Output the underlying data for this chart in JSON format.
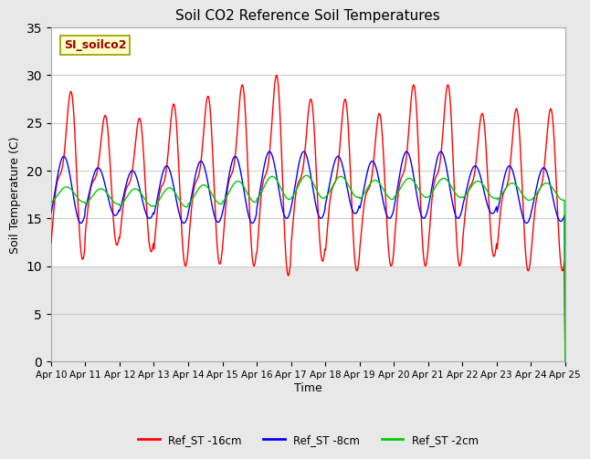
{
  "title": "Soil CO2 Reference Soil Temperatures",
  "xlabel": "Time",
  "ylabel": "Soil Temperature (C)",
  "ylim": [
    0,
    35
  ],
  "yticks": [
    0,
    5,
    10,
    15,
    20,
    25,
    30,
    35
  ],
  "label_box_text": "SI_soilco2",
  "x_tick_labels": [
    "Apr 10",
    "Apr 11",
    "Apr 12",
    "Apr 13",
    "Apr 14",
    "Apr 15",
    "Apr 16",
    "Apr 17",
    "Apr 18",
    "Apr 19",
    "Apr 20",
    "Apr 21",
    "Apr 22",
    "Apr 23",
    "Apr 24",
    "Apr 25"
  ],
  "fig_bg_color": "#e8e8e8",
  "plot_bg_color": "#ffffff",
  "plot_bg_low_color": "#e8e8e8",
  "active_band_color": "#e8e8e8",
  "line_colors": [
    "#ff0000",
    "#0000ff",
    "#00cc00"
  ],
  "line_labels": [
    "Ref_ST -16cm",
    "Ref_ST -8cm",
    "Ref_ST -2cm"
  ],
  "legend_box_color": "#ffffcc",
  "legend_box_text_color": "#990000",
  "n_points": 720,
  "days": 15
}
